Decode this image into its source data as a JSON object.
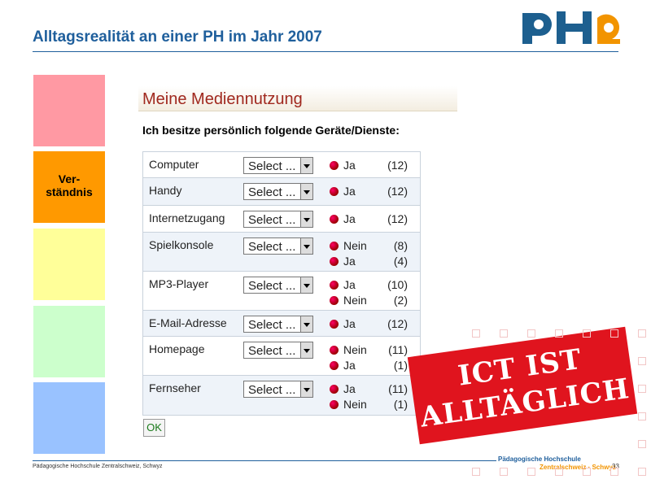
{
  "header": {
    "title": "Alltagsrealität an einer PH im Jahr 2007"
  },
  "sidebar": {
    "active_label": "Ver-ständnis"
  },
  "form": {
    "title": "Meine Mediennutzung",
    "question": "Ich besitze persönlich folgende Geräte/Dienste:",
    "button": "OK",
    "rows": [
      {
        "label": "Computer",
        "select": "Select ...",
        "options": [
          {
            "label": "Ja",
            "count": "(12)"
          }
        ]
      },
      {
        "label": "Handy",
        "select": "Select ...",
        "options": [
          {
            "label": "Ja",
            "count": "(12)"
          }
        ]
      },
      {
        "label": "Internetzugang",
        "select": "Select ...",
        "options": [
          {
            "label": "Ja",
            "count": "(12)"
          }
        ]
      },
      {
        "label": "Spielkonsole",
        "select": "Select ...",
        "options": [
          {
            "label": "Nein",
            "count": "(8)"
          },
          {
            "label": "Ja",
            "count": "(4)"
          }
        ]
      },
      {
        "label": "MP3-Player",
        "select": "Select ...",
        "options": [
          {
            "label": "Ja",
            "count": "(10)"
          },
          {
            "label": "Nein",
            "count": "(2)"
          }
        ]
      },
      {
        "label": "E-Mail-Adresse",
        "select": "Select ...",
        "options": [
          {
            "label": "Ja",
            "count": "(12)"
          }
        ]
      },
      {
        "label": "Homepage",
        "select": "Select ...",
        "options": [
          {
            "label": "Nein",
            "count": "(11)"
          },
          {
            "label": "Ja",
            "count": "(1)"
          }
        ]
      },
      {
        "label": "Fernseher",
        "select": "Select ...",
        "options": [
          {
            "label": "Ja",
            "count": "(11)"
          },
          {
            "label": "Nein",
            "count": "(1)"
          }
        ]
      }
    ]
  },
  "stamp": {
    "line1": "ICT IST",
    "line2": "ALLTÄGLICH"
  },
  "footer": {
    "institution": "Pädagogische Hochschule Zentralschweiz, Schwyz",
    "page": "33",
    "logo_line1": "Pädagogische Hochschule",
    "logo_line2": "Zentralschweiz · Schwyz"
  }
}
